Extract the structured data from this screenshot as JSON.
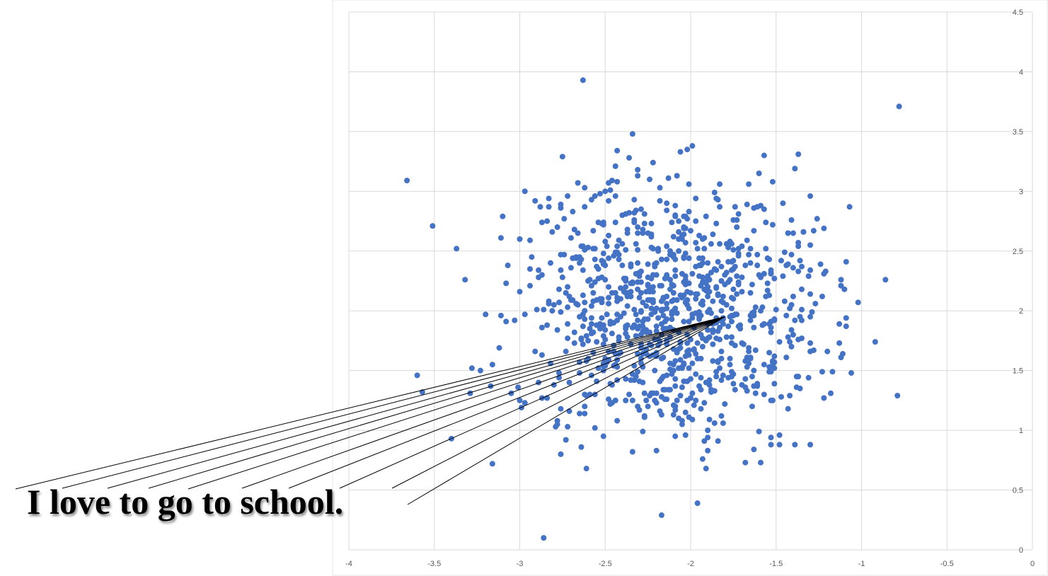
{
  "annotation": {
    "sentence": "I love to go to school."
  },
  "colors": {
    "points": "#4472c4",
    "grid": "#d9d9d9",
    "pointer_lines": "#000000",
    "sentence": "#000000"
  },
  "chart_data": {
    "type": "scatter",
    "title": "",
    "xlabel": "",
    "ylabel": "",
    "xlim": [
      -4,
      0
    ],
    "ylim": [
      0,
      4.5
    ],
    "x_ticks": [
      -4,
      -3.5,
      -3,
      -2.5,
      -2,
      -1.5,
      -1,
      -0.5,
      0
    ],
    "y_ticks": [
      0,
      0.5,
      1,
      1.5,
      2,
      2.5,
      3,
      3.5,
      4,
      4.5
    ],
    "x_tick_labels": [
      "-4",
      "-3.5",
      "-3",
      "-2.5",
      "-2",
      "-1.5",
      "-1",
      "-0.5",
      "0"
    ],
    "y_tick_labels": [
      "0",
      "0.5",
      "1",
      "1.5",
      "2",
      "2.5",
      "3",
      "3.5",
      "4",
      "4.5"
    ],
    "y_axis_position": "right",
    "grid": true,
    "legend": "none",
    "points_shown": 1000,
    "distribution": {
      "center": [
        -2.12,
        2.0
      ],
      "sd": [
        0.48,
        0.58
      ]
    },
    "notable_points": [
      [
        -2.63,
        3.93
      ],
      [
        -0.78,
        3.71
      ],
      [
        -3.66,
        3.09
      ],
      [
        -3.51,
        2.71
      ],
      [
        -2.86,
        0.1
      ],
      [
        -2.17,
        0.29
      ],
      [
        -1.96,
        0.39
      ],
      [
        -0.92,
        1.74
      ],
      [
        -0.79,
        1.29
      ],
      [
        -1.02,
        2.07
      ],
      [
        -3.6,
        1.46
      ],
      [
        -3.57,
        1.32
      ],
      [
        -3.4,
        0.93
      ],
      [
        -3.16,
        0.72
      ],
      [
        -1.3,
        0.88
      ],
      [
        -0.86,
        2.26
      ]
    ],
    "pointer_convergence": [
      -1.8,
      1.95
    ]
  }
}
